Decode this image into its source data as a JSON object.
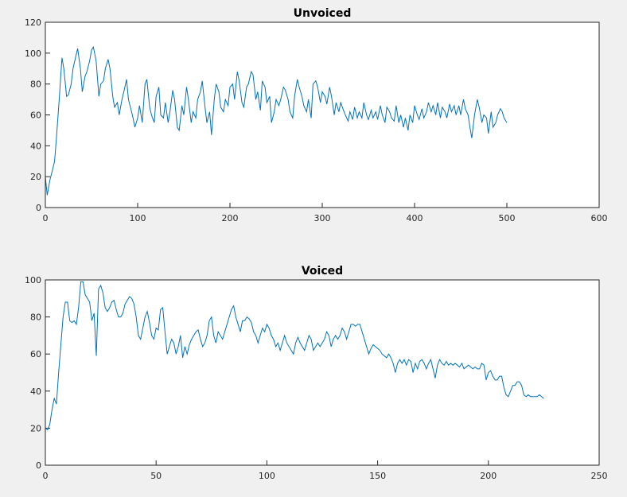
{
  "chart_data": [
    {
      "type": "line",
      "title": "Unvoiced",
      "color": "#0072bd",
      "xlim": [
        0,
        600
      ],
      "ylim": [
        0,
        120
      ],
      "xticks": [
        0,
        100,
        200,
        300,
        400,
        500,
        600
      ],
      "yticks": [
        0,
        20,
        40,
        60,
        80,
        100,
        120
      ],
      "x": [
        0,
        2,
        5,
        8,
        10,
        12,
        15,
        18,
        20,
        23,
        25,
        28,
        30,
        33,
        35,
        38,
        40,
        43,
        45,
        48,
        50,
        52,
        55,
        58,
        60,
        63,
        65,
        68,
        70,
        73,
        75,
        78,
        80,
        83,
        85,
        88,
        90,
        93,
        95,
        97,
        100,
        102,
        105,
        108,
        110,
        113,
        115,
        118,
        120,
        123,
        125,
        128,
        130,
        133,
        135,
        138,
        140,
        143,
        145,
        148,
        150,
        153,
        155,
        158,
        160,
        163,
        165,
        168,
        170,
        173,
        175,
        178,
        180,
        183,
        185,
        188,
        190,
        193,
        195,
        198,
        200,
        203,
        205,
        208,
        210,
        213,
        215,
        218,
        220,
        223,
        225,
        228,
        230,
        233,
        235,
        238,
        240,
        243,
        245,
        248,
        250,
        253,
        255,
        258,
        260,
        263,
        265,
        268,
        270,
        273,
        275,
        278,
        280,
        283,
        285,
        288,
        290,
        293,
        295,
        298,
        300,
        303,
        305,
        308,
        310,
        313,
        315,
        318,
        320,
        323,
        325,
        328,
        330,
        333,
        335,
        338,
        340,
        343,
        345,
        348,
        350,
        353,
        355,
        358,
        360,
        363,
        365,
        368,
        370,
        373,
        375,
        378,
        380,
        383,
        385,
        388,
        390,
        393,
        395,
        398,
        400,
        403,
        405,
        408,
        410,
        413,
        415,
        418,
        420,
        423,
        425,
        428,
        430,
        433,
        435,
        438,
        440,
        443,
        445,
        448,
        450,
        453,
        455,
        458,
        460,
        462,
        465,
        468,
        470,
        473,
        475,
        478,
        480,
        483,
        485,
        488,
        490,
        493,
        495,
        497,
        500
      ],
      "values": [
        20,
        8,
        18,
        25,
        30,
        45,
        70,
        97,
        90,
        72,
        73,
        80,
        90,
        98,
        103,
        90,
        75,
        85,
        88,
        95,
        102,
        104,
        95,
        72,
        80,
        82,
        90,
        96,
        90,
        72,
        65,
        68,
        60,
        70,
        75,
        83,
        70,
        63,
        58,
        52,
        58,
        66,
        55,
        80,
        83,
        65,
        60,
        55,
        72,
        78,
        60,
        58,
        68,
        55,
        62,
        76,
        70,
        52,
        50,
        66,
        60,
        78,
        70,
        55,
        62,
        58,
        70,
        75,
        82,
        65,
        55,
        62,
        47,
        70,
        80,
        75,
        65,
        62,
        70,
        66,
        78,
        80,
        70,
        88,
        82,
        68,
        65,
        78,
        80,
        88,
        86,
        70,
        75,
        63,
        82,
        78,
        68,
        72,
        55,
        62,
        70,
        66,
        70,
        78,
        76,
        70,
        62,
        58,
        72,
        83,
        78,
        72,
        66,
        62,
        70,
        58,
        80,
        82,
        78,
        68,
        75,
        72,
        67,
        78,
        72,
        60,
        68,
        62,
        68,
        63,
        60,
        56,
        62,
        57,
        65,
        58,
        62,
        58,
        68,
        60,
        57,
        63,
        58,
        62,
        57,
        66,
        60,
        55,
        65,
        62,
        58,
        56,
        66,
        55,
        60,
        52,
        58,
        50,
        60,
        55,
        66,
        60,
        57,
        64,
        58,
        62,
        68,
        62,
        66,
        60,
        68,
        58,
        65,
        62,
        58,
        67,
        62,
        66,
        60,
        66,
        60,
        70,
        64,
        60,
        52,
        45,
        60,
        70,
        65,
        55,
        60,
        58,
        48,
        62,
        52,
        55,
        60,
        64,
        62,
        58,
        55
      ]
    },
    {
      "type": "line",
      "title": "Voiced",
      "color": "#0072bd",
      "xlim": [
        0,
        250
      ],
      "ylim": [
        0,
        100
      ],
      "xticks": [
        0,
        50,
        100,
        150,
        200,
        250
      ],
      "yticks": [
        0,
        20,
        40,
        60,
        80,
        100
      ],
      "x": [
        0,
        1,
        2,
        3,
        4,
        5,
        6,
        7,
        8,
        9,
        10,
        11,
        12,
        13,
        14,
        15,
        16,
        17,
        18,
        19,
        20,
        21,
        22,
        23,
        24,
        25,
        26,
        27,
        28,
        29,
        30,
        31,
        32,
        33,
        34,
        35,
        36,
        37,
        38,
        39,
        40,
        41,
        42,
        43,
        44,
        45,
        46,
        47,
        48,
        49,
        50,
        51,
        52,
        53,
        54,
        55,
        56,
        57,
        58,
        59,
        60,
        61,
        62,
        63,
        64,
        65,
        66,
        67,
        68,
        69,
        70,
        71,
        72,
        73,
        74,
        75,
        76,
        77,
        78,
        79,
        80,
        81,
        82,
        83,
        84,
        85,
        86,
        87,
        88,
        89,
        90,
        91,
        92,
        93,
        94,
        95,
        96,
        97,
        98,
        99,
        100,
        101,
        102,
        103,
        104,
        105,
        106,
        107,
        108,
        109,
        110,
        111,
        112,
        113,
        114,
        115,
        116,
        117,
        118,
        119,
        120,
        121,
        122,
        123,
        124,
        125,
        126,
        127,
        128,
        129,
        130,
        131,
        132,
        133,
        134,
        135,
        136,
        137,
        138,
        139,
        140,
        141,
        142,
        143,
        144,
        145,
        146,
        147,
        148,
        149,
        150,
        151,
        152,
        153,
        154,
        155,
        156,
        157,
        158,
        159,
        160,
        161,
        162,
        163,
        164,
        165,
        166,
        167,
        168,
        169,
        170,
        171,
        172,
        173,
        174,
        175,
        176,
        177,
        178,
        179,
        180,
        181,
        182,
        183,
        184,
        185,
        186,
        187,
        188,
        189,
        190,
        191,
        192,
        193,
        194,
        195,
        196,
        197,
        198,
        199,
        200,
        201,
        202,
        203,
        204,
        205,
        206,
        207,
        208,
        209,
        210,
        211,
        212,
        213,
        214,
        215,
        216,
        217,
        218,
        219,
        220,
        221,
        222,
        223,
        224,
        225
      ],
      "values": [
        20,
        19,
        22,
        30,
        36,
        33,
        50,
        65,
        80,
        88,
        88,
        78,
        77,
        78,
        76,
        85,
        99,
        99,
        92,
        90,
        88,
        78,
        82,
        59,
        95,
        97,
        93,
        85,
        83,
        85,
        88,
        89,
        84,
        80,
        80,
        82,
        87,
        89,
        91,
        90,
        87,
        80,
        70,
        68,
        74,
        80,
        83,
        77,
        70,
        68,
        74,
        73,
        84,
        85,
        72,
        60,
        64,
        68,
        66,
        60,
        64,
        70,
        58,
        64,
        60,
        65,
        68,
        70,
        72,
        73,
        68,
        64,
        66,
        70,
        78,
        80,
        70,
        66,
        72,
        70,
        68,
        72,
        76,
        80,
        84,
        86,
        80,
        76,
        72,
        78,
        78,
        80,
        79,
        77,
        72,
        70,
        66,
        70,
        74,
        72,
        76,
        74,
        70,
        68,
        64,
        66,
        62,
        66,
        70,
        66,
        64,
        62,
        60,
        66,
        69,
        66,
        64,
        62,
        66,
        70,
        68,
        62,
        64,
        66,
        64,
        66,
        68,
        72,
        70,
        64,
        68,
        70,
        68,
        70,
        74,
        72,
        68,
        72,
        76,
        76,
        75,
        76,
        76,
        72,
        68,
        64,
        60,
        63,
        65,
        64,
        63,
        62,
        60,
        59,
        58,
        60,
        58,
        55,
        50,
        55,
        57,
        55,
        57,
        54,
        57,
        56,
        50,
        55,
        52,
        56,
        57,
        55,
        52,
        55,
        57,
        52,
        47,
        54,
        57,
        55,
        54,
        56,
        54,
        55,
        54,
        55,
        54,
        53,
        55,
        52,
        53,
        54,
        53,
        52,
        53,
        52,
        52,
        55,
        54,
        46,
        50,
        51,
        48,
        46,
        46,
        48,
        48,
        42,
        38,
        37,
        40,
        43,
        43,
        45,
        45,
        43,
        38,
        37,
        38,
        37,
        37,
        37,
        37,
        38,
        37,
        36
      ]
    }
  ]
}
